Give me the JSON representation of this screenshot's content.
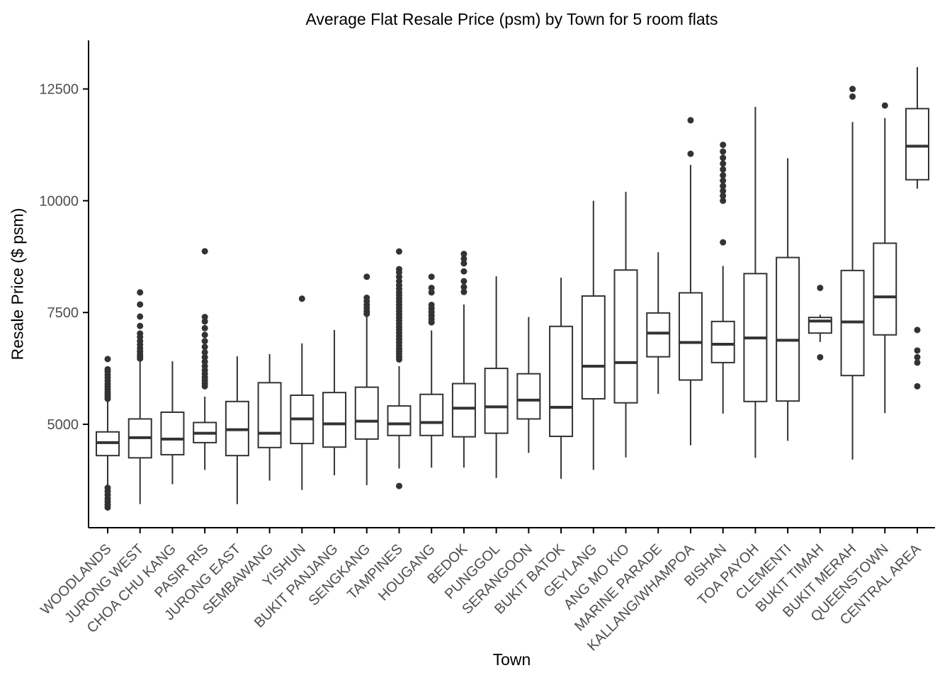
{
  "chart_data": {
    "type": "boxplot",
    "title": "Average Flat Resale Price (psm) by Town for 5 room flats",
    "xlabel": "Town",
    "ylabel": "Resale Price ($ psm)",
    "y_ticks": [
      5000,
      7500,
      10000,
      12500
    ],
    "ylim": [
      3000,
      13400
    ],
    "grid": false,
    "legend": null,
    "colors": {
      "box_stroke": "#333333",
      "outlier_fill": "#333333",
      "axis_line": "#000000",
      "tick_text": "#4d4d4d"
    },
    "series": [
      {
        "name": "WOODLANDS",
        "whisker_low": 3600,
        "q1": 4300,
        "median": 4590,
        "q3": 4830,
        "whisker_high": 5540,
        "outliers_high": [
          5570,
          5620,
          5670,
          5720,
          5780,
          5840,
          5900,
          5970,
          6040,
          6110,
          6180,
          6230,
          6460
        ],
        "outliers_low": [
          3140,
          3200,
          3270,
          3340,
          3420,
          3500,
          3580
        ]
      },
      {
        "name": "JURONG WEST",
        "whisker_low": 3215,
        "q1": 4250,
        "median": 4700,
        "q3": 5120,
        "whisker_high": 6440,
        "outliers_high": [
          6470,
          6520,
          6570,
          6630,
          6700,
          6780,
          6860,
          6950,
          7030,
          7200,
          7410,
          7680,
          7950
        ],
        "outliers_low": []
      },
      {
        "name": "CHOA CHU KANG",
        "whisker_low": 3660,
        "q1": 4320,
        "median": 4670,
        "q3": 5270,
        "whisker_high": 6410,
        "outliers_high": [],
        "outliers_low": []
      },
      {
        "name": "PASIR RIS",
        "whisker_low": 3980,
        "q1": 4590,
        "median": 4800,
        "q3": 5040,
        "whisker_high": 5620,
        "outliers_high": [
          5850,
          5910,
          5980,
          6050,
          6130,
          6210,
          6300,
          6400,
          6500,
          6610,
          6730,
          6860,
          7000,
          7150,
          7300,
          7400,
          8870
        ],
        "outliers_low": []
      },
      {
        "name": "JURONG EAST",
        "whisker_low": 3215,
        "q1": 4300,
        "median": 4880,
        "q3": 5510,
        "whisker_high": 6520,
        "outliers_high": [],
        "outliers_low": []
      },
      {
        "name": "SEMBAWANG",
        "whisker_low": 3740,
        "q1": 4480,
        "median": 4800,
        "q3": 5930,
        "whisker_high": 6570,
        "outliers_high": [],
        "outliers_low": []
      },
      {
        "name": "YISHUN",
        "whisker_low": 3530,
        "q1": 4570,
        "median": 5120,
        "q3": 5650,
        "whisker_high": 6810,
        "outliers_high": [
          7810
        ],
        "outliers_low": []
      },
      {
        "name": "BUKIT PANJANG",
        "whisker_low": 3860,
        "q1": 4490,
        "median": 5010,
        "q3": 5710,
        "whisker_high": 7110,
        "outliers_high": [],
        "outliers_low": []
      },
      {
        "name": "SENGKANG",
        "whisker_low": 3640,
        "q1": 4670,
        "median": 5070,
        "q3": 5830,
        "whisker_high": 7440,
        "outliers_high": [
          7470,
          7530,
          7600,
          7670,
          7750,
          7830,
          8300
        ],
        "outliers_low": []
      },
      {
        "name": "TAMPINES",
        "whisker_low": 4010,
        "q1": 4750,
        "median": 5010,
        "q3": 5410,
        "whisker_high": 6300,
        "outliers_high": [
          6450,
          6510,
          6570,
          6630,
          6690,
          6760,
          6830,
          6900,
          6970,
          7040,
          7110,
          7180,
          7250,
          7320,
          7390,
          7460,
          7530,
          7600,
          7670,
          7740,
          7810,
          7880,
          7950,
          8030,
          8110,
          8200,
          8300,
          8400,
          8470,
          8865
        ],
        "outliers_low": [
          3620
        ]
      },
      {
        "name": "HOUGANG",
        "whisker_low": 4030,
        "q1": 4750,
        "median": 5040,
        "q3": 5670,
        "whisker_high": 7100,
        "outliers_high": [
          7280,
          7350,
          7430,
          7510,
          7590,
          7670,
          7950,
          8050,
          8300
        ],
        "outliers_low": []
      },
      {
        "name": "BEDOK",
        "whisker_low": 4030,
        "q1": 4720,
        "median": 5360,
        "q3": 5910,
        "whisker_high": 7680,
        "outliers_high": [
          7960,
          8070,
          8200,
          8420,
          8600,
          8700,
          8810
        ],
        "outliers_low": []
      },
      {
        "name": "PUNGGOL",
        "whisker_low": 3800,
        "q1": 4800,
        "median": 5390,
        "q3": 6250,
        "whisker_high": 8310,
        "outliers_high": [],
        "outliers_low": []
      },
      {
        "name": "SERANGOON",
        "whisker_low": 4360,
        "q1": 5120,
        "median": 5540,
        "q3": 6130,
        "whisker_high": 7400,
        "outliers_high": [],
        "outliers_low": []
      },
      {
        "name": "BUKIT BATOK",
        "whisker_low": 3780,
        "q1": 4730,
        "median": 5380,
        "q3": 7190,
        "whisker_high": 8280,
        "outliers_high": [],
        "outliers_low": []
      },
      {
        "name": "GEYLANG",
        "whisker_low": 3980,
        "q1": 5570,
        "median": 6300,
        "q3": 7870,
        "whisker_high": 10000,
        "outliers_high": [],
        "outliers_low": []
      },
      {
        "name": "ANG MO KIO",
        "whisker_low": 4260,
        "q1": 5480,
        "median": 6380,
        "q3": 8450,
        "whisker_high": 10200,
        "outliers_high": [],
        "outliers_low": []
      },
      {
        "name": "MARINE PARADE",
        "whisker_low": 5680,
        "q1": 6510,
        "median": 7040,
        "q3": 7490,
        "whisker_high": 8850,
        "outliers_high": [],
        "outliers_low": []
      },
      {
        "name": "KALLANG/WHAMPOA",
        "whisker_low": 4530,
        "q1": 5990,
        "median": 6830,
        "q3": 7940,
        "whisker_high": 10800,
        "outliers_high": [
          11050,
          11800
        ],
        "outliers_low": []
      },
      {
        "name": "BISHAN",
        "whisker_low": 5240,
        "q1": 6380,
        "median": 6790,
        "q3": 7300,
        "whisker_high": 8540,
        "outliers_high": [
          9070,
          10000,
          10110,
          10220,
          10330,
          10450,
          10570,
          10700,
          10830,
          10960,
          11100,
          11250
        ],
        "outliers_low": []
      },
      {
        "name": "TOA PAYOH",
        "whisker_low": 4250,
        "q1": 5510,
        "median": 6930,
        "q3": 8370,
        "whisker_high": 12100,
        "outliers_high": [],
        "outliers_low": []
      },
      {
        "name": "CLEMENTI",
        "whisker_low": 4630,
        "q1": 5520,
        "median": 6880,
        "q3": 8730,
        "whisker_high": 10950,
        "outliers_high": [],
        "outliers_low": []
      },
      {
        "name": "BUKIT TIMAH",
        "whisker_low": 6840,
        "q1": 7040,
        "median": 7310,
        "q3": 7390,
        "whisker_high": 7450,
        "outliers_high": [
          8050
        ],
        "outliers_low": [
          6500
        ]
      },
      {
        "name": "BUKIT MERAH",
        "whisker_low": 4210,
        "q1": 6090,
        "median": 7290,
        "q3": 8440,
        "whisker_high": 11760,
        "outliers_high": [
          12330,
          12500
        ],
        "outliers_low": []
      },
      {
        "name": "QUEENSTOWN",
        "whisker_low": 5250,
        "q1": 7000,
        "median": 7850,
        "q3": 9050,
        "whisker_high": 11850,
        "outliers_high": [
          12130
        ],
        "outliers_low": []
      },
      {
        "name": "CENTRAL AREA",
        "whisker_low": 10270,
        "q1": 10470,
        "median": 11220,
        "q3": 12060,
        "whisker_high": 12990,
        "outliers_high": [],
        "outliers_low": [
          7110,
          6650,
          6500,
          6380,
          5850
        ]
      }
    ]
  }
}
